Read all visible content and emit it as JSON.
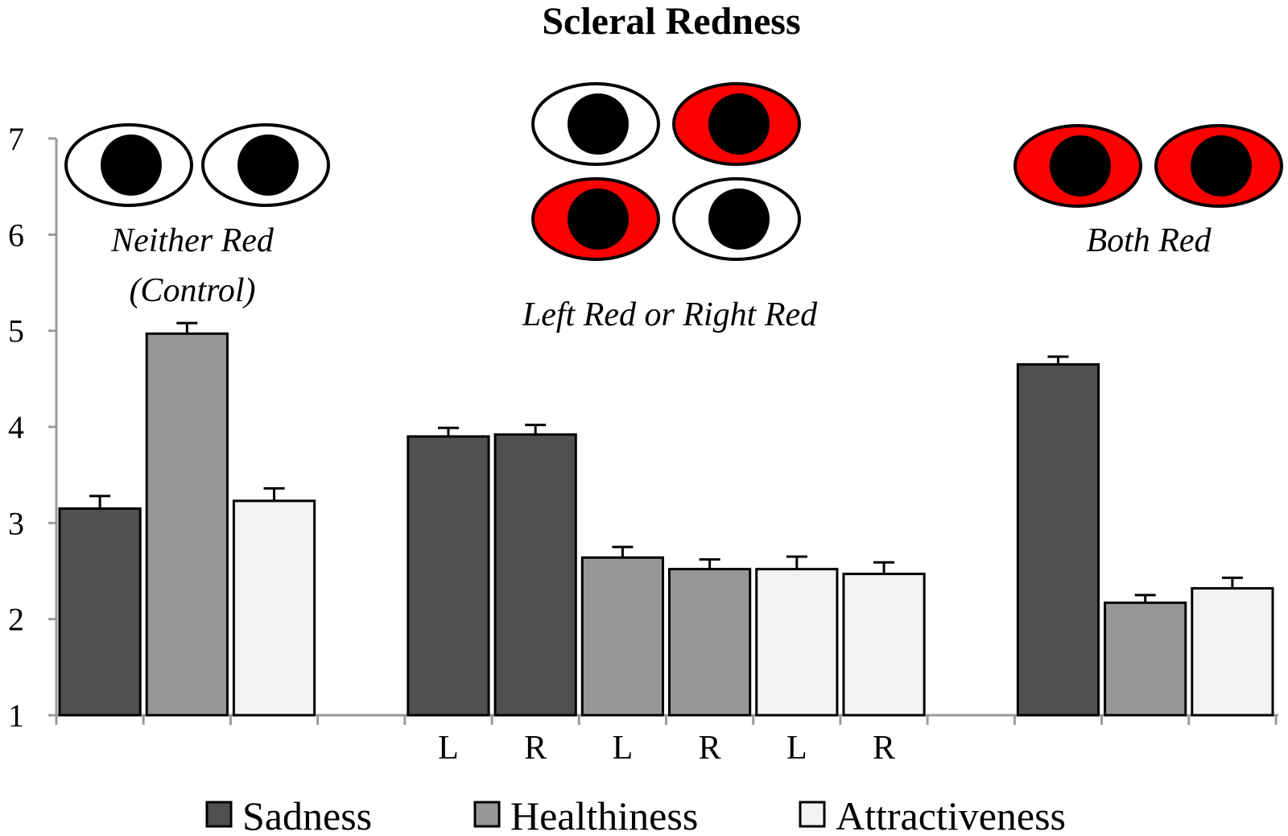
{
  "colors": {
    "sadness": "#505050",
    "healthiness": "#979797",
    "attractiveness": "#f2f2f2",
    "red": "#ff0000",
    "axis": "#9a9a9a",
    "outline": "#000000"
  },
  "chart_data": {
    "type": "bar",
    "title": "Scleral Redness",
    "xlabel": "",
    "ylabel": "",
    "ylim": [
      1,
      7
    ],
    "yticks": [
      1,
      2,
      3,
      4,
      5,
      6,
      7
    ],
    "grid": false,
    "legend_position": "bottom",
    "legend": [
      {
        "key": "sadness",
        "label": "Sadness"
      },
      {
        "key": "healthiness",
        "label": "Healthiness"
      },
      {
        "key": "attractiveness",
        "label": "Attractiveness"
      }
    ],
    "slots": 14,
    "bars": [
      {
        "slot": 0,
        "measure": "sadness",
        "value": 3.15,
        "error": 0.13,
        "label": ""
      },
      {
        "slot": 1,
        "measure": "healthiness",
        "value": 4.97,
        "error": 0.11,
        "label": ""
      },
      {
        "slot": 2,
        "measure": "attractiveness",
        "value": 3.23,
        "error": 0.13,
        "label": ""
      },
      {
        "slot": 4,
        "measure": "sadness",
        "value": 3.9,
        "error": 0.09,
        "label": "L"
      },
      {
        "slot": 5,
        "measure": "sadness",
        "value": 3.92,
        "error": 0.1,
        "label": "R"
      },
      {
        "slot": 6,
        "measure": "healthiness",
        "value": 2.64,
        "error": 0.11,
        "label": "L"
      },
      {
        "slot": 7,
        "measure": "healthiness",
        "value": 2.52,
        "error": 0.1,
        "label": "R"
      },
      {
        "slot": 8,
        "measure": "attractiveness",
        "value": 2.52,
        "error": 0.13,
        "label": "L"
      },
      {
        "slot": 9,
        "measure": "attractiveness",
        "value": 2.47,
        "error": 0.12,
        "label": "R"
      },
      {
        "slot": 11,
        "measure": "sadness",
        "value": 4.65,
        "error": 0.08,
        "label": ""
      },
      {
        "slot": 12,
        "measure": "healthiness",
        "value": 2.17,
        "error": 0.08,
        "label": ""
      },
      {
        "slot": 13,
        "measure": "attractiveness",
        "value": 2.32,
        "error": 0.11,
        "label": ""
      }
    ],
    "conditions": [
      {
        "name": "neither-red",
        "label_lines": [
          "Neither Red",
          "(Control)"
        ],
        "eye_rows": [
          [
            "white",
            "white"
          ]
        ]
      },
      {
        "name": "left-or-right-red",
        "label_lines": [
          "Left Red or Right Red"
        ],
        "eye_rows": [
          [
            "white",
            "red"
          ],
          [
            "red",
            "white"
          ]
        ]
      },
      {
        "name": "both-red",
        "label_lines": [
          "Both Red"
        ],
        "eye_rows": [
          [
            "red",
            "red"
          ]
        ]
      }
    ]
  }
}
